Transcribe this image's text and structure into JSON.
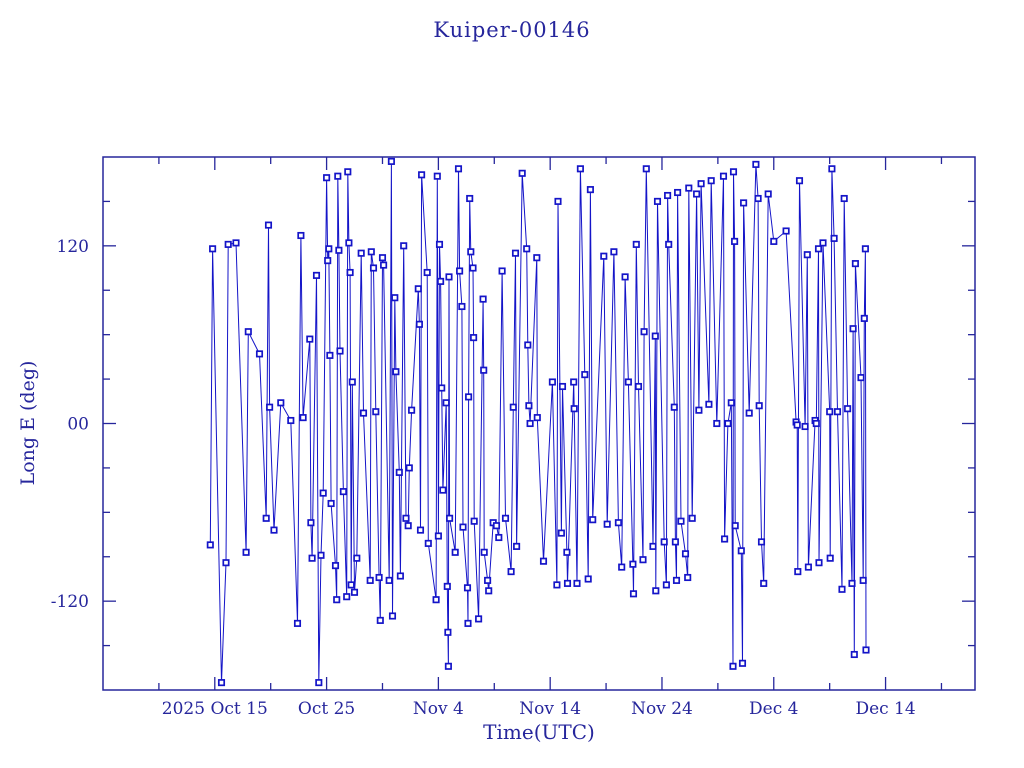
{
  "chart_data": {
    "type": "line",
    "title": "Kuiper-00146",
    "xlabel": "Time(UTC)",
    "ylabel": "Long E (deg)",
    "marker": "open-square",
    "grid": false,
    "legend": "none",
    "colors": {
      "data": "#1414c8",
      "frame_and_text": "#26269c",
      "background": "#ffffff"
    },
    "x_axis": {
      "unit": "days since 2025 Oct 5",
      "range": [
        0,
        78
      ],
      "major_ticks": [
        {
          "day": 10,
          "label": "2025 Oct 15"
        },
        {
          "day": 20,
          "label": "Oct 25"
        },
        {
          "day": 30,
          "label": "Nov 4"
        },
        {
          "day": 40,
          "label": "Nov 14"
        },
        {
          "day": 50,
          "label": "Nov 24"
        },
        {
          "day": 60,
          "label": "Dec 4"
        },
        {
          "day": 70,
          "label": "Dec 14"
        }
      ],
      "minor_tick_days": [
        5,
        15,
        25,
        35,
        45,
        55,
        65,
        75
      ]
    },
    "y_axis": {
      "range": [
        -180,
        180
      ],
      "major_ticks": [
        {
          "value": 120,
          "label": "120"
        },
        {
          "value": 0,
          "label": "00"
        },
        {
          "value": -120,
          "label": "-120"
        }
      ],
      "minor_tick_values": [
        -150,
        -90,
        -60,
        -30,
        30,
        60,
        90,
        150
      ]
    },
    "points": [
      [
        9.6,
        -82
      ],
      [
        9.8,
        118
      ],
      [
        10.6,
        -175
      ],
      [
        11.0,
        -94
      ],
      [
        11.2,
        121
      ],
      [
        11.9,
        122
      ],
      [
        12.8,
        -87
      ],
      [
        13.0,
        62
      ],
      [
        14.0,
        47
      ],
      [
        14.6,
        -64
      ],
      [
        14.8,
        134
      ],
      [
        14.9,
        11
      ],
      [
        15.3,
        -72
      ],
      [
        15.9,
        14
      ],
      [
        16.8,
        2
      ],
      [
        17.4,
        -135
      ],
      [
        17.7,
        127
      ],
      [
        17.9,
        4
      ],
      [
        18.5,
        57
      ],
      [
        18.6,
        -67
      ],
      [
        18.7,
        -91
      ],
      [
        19.1,
        100
      ],
      [
        19.3,
        -175
      ],
      [
        19.5,
        -89
      ],
      [
        19.7,
        -47
      ],
      [
        20.0,
        166
      ],
      [
        20.1,
        110
      ],
      [
        20.2,
        118
      ],
      [
        20.3,
        46
      ],
      [
        20.4,
        -54
      ],
      [
        20.8,
        -96
      ],
      [
        20.9,
        -119
      ],
      [
        21.0,
        167
      ],
      [
        21.1,
        117
      ],
      [
        21.2,
        49
      ],
      [
        21.5,
        -46
      ],
      [
        21.8,
        -117
      ],
      [
        21.9,
        170
      ],
      [
        22.0,
        122
      ],
      [
        22.1,
        102
      ],
      [
        22.2,
        -109
      ],
      [
        22.3,
        28
      ],
      [
        22.5,
        -114
      ],
      [
        22.7,
        -91
      ],
      [
        23.1,
        115
      ],
      [
        23.3,
        7
      ],
      [
        23.9,
        -106
      ],
      [
        24.0,
        116
      ],
      [
        24.2,
        105
      ],
      [
        24.4,
        8
      ],
      [
        24.7,
        -104
      ],
      [
        24.8,
        -133
      ],
      [
        25.0,
        112
      ],
      [
        25.1,
        107
      ],
      [
        25.6,
        -106
      ],
      [
        25.8,
        177
      ],
      [
        25.9,
        -130
      ],
      [
        26.1,
        85
      ],
      [
        26.2,
        35
      ],
      [
        26.5,
        -33
      ],
      [
        26.6,
        -103
      ],
      [
        26.9,
        120
      ],
      [
        27.1,
        -64
      ],
      [
        27.3,
        -69
      ],
      [
        27.4,
        -30
      ],
      [
        27.6,
        9
      ],
      [
        28.2,
        91
      ],
      [
        28.3,
        67
      ],
      [
        28.4,
        -72
      ],
      [
        28.5,
        168
      ],
      [
        29.0,
        102
      ],
      [
        29.1,
        -81
      ],
      [
        29.8,
        -119
      ],
      [
        29.9,
        167
      ],
      [
        30.0,
        -76
      ],
      [
        30.1,
        121
      ],
      [
        30.2,
        96
      ],
      [
        30.3,
        24
      ],
      [
        30.4,
        -45
      ],
      [
        30.7,
        14
      ],
      [
        30.8,
        -110
      ],
      [
        30.85,
        -141
      ],
      [
        30.9,
        -164
      ],
      [
        30.95,
        99
      ],
      [
        31.0,
        -64
      ],
      [
        31.5,
        -87
      ],
      [
        31.8,
        172
      ],
      [
        31.9,
        103
      ],
      [
        32.1,
        79
      ],
      [
        32.2,
        -70
      ],
      [
        32.6,
        -111
      ],
      [
        32.65,
        -135
      ],
      [
        32.7,
        18
      ],
      [
        32.8,
        152
      ],
      [
        32.9,
        116
      ],
      [
        33.1,
        105
      ],
      [
        33.15,
        58
      ],
      [
        33.2,
        -66
      ],
      [
        33.6,
        -132
      ],
      [
        34.0,
        84
      ],
      [
        34.05,
        36
      ],
      [
        34.1,
        -87
      ],
      [
        34.4,
        -106
      ],
      [
        34.5,
        -113
      ],
      [
        34.9,
        -67
      ],
      [
        35.2,
        -69
      ],
      [
        35.4,
        -77
      ],
      [
        35.7,
        103
      ],
      [
        36.0,
        -64
      ],
      [
        36.5,
        -100
      ],
      [
        36.7,
        11
      ],
      [
        36.9,
        115
      ],
      [
        37.0,
        -83
      ],
      [
        37.5,
        169
      ],
      [
        37.9,
        118
      ],
      [
        38.0,
        53
      ],
      [
        38.1,
        12
      ],
      [
        38.2,
        0
      ],
      [
        38.8,
        112
      ],
      [
        38.85,
        4
      ],
      [
        39.4,
        -93
      ],
      [
        40.2,
        28
      ],
      [
        40.6,
        -109
      ],
      [
        40.7,
        150
      ],
      [
        41.0,
        -74
      ],
      [
        41.1,
        25
      ],
      [
        41.5,
        -87
      ],
      [
        41.55,
        -108
      ],
      [
        42.1,
        28
      ],
      [
        42.15,
        10
      ],
      [
        42.4,
        -108
      ],
      [
        42.7,
        172
      ],
      [
        43.1,
        33
      ],
      [
        43.4,
        -105
      ],
      [
        43.6,
        158
      ],
      [
        43.8,
        -65
      ],
      [
        44.8,
        113
      ],
      [
        45.1,
        -68
      ],
      [
        45.7,
        116
      ],
      [
        46.1,
        -67
      ],
      [
        46.4,
        -97
      ],
      [
        46.7,
        99
      ],
      [
        47.0,
        28
      ],
      [
        47.4,
        -95
      ],
      [
        47.45,
        -115
      ],
      [
        47.7,
        121
      ],
      [
        47.9,
        25
      ],
      [
        48.3,
        -92
      ],
      [
        48.4,
        62
      ],
      [
        48.6,
        172
      ],
      [
        49.2,
        -83
      ],
      [
        49.4,
        59
      ],
      [
        49.45,
        -113
      ],
      [
        49.6,
        150
      ],
      [
        50.2,
        -80
      ],
      [
        50.4,
        -109
      ],
      [
        50.5,
        154
      ],
      [
        50.6,
        121
      ],
      [
        51.1,
        11
      ],
      [
        51.2,
        -80
      ],
      [
        51.3,
        -106
      ],
      [
        51.4,
        156
      ],
      [
        51.7,
        -66
      ],
      [
        52.1,
        -88
      ],
      [
        52.3,
        -104
      ],
      [
        52.4,
        159
      ],
      [
        52.7,
        -64
      ],
      [
        53.1,
        155
      ],
      [
        53.3,
        9
      ],
      [
        53.5,
        162
      ],
      [
        54.2,
        13
      ],
      [
        54.4,
        164
      ],
      [
        54.9,
        0
      ],
      [
        55.5,
        167
      ],
      [
        55.6,
        -78
      ],
      [
        55.9,
        0
      ],
      [
        56.2,
        14
      ],
      [
        56.35,
        -164
      ],
      [
        56.4,
        170
      ],
      [
        56.5,
        123
      ],
      [
        56.55,
        -69
      ],
      [
        57.1,
        -86
      ],
      [
        57.2,
        -162
      ],
      [
        57.3,
        149
      ],
      [
        57.8,
        7
      ],
      [
        58.4,
        175
      ],
      [
        58.6,
        152
      ],
      [
        58.7,
        12
      ],
      [
        58.9,
        -80
      ],
      [
        59.1,
        -108
      ],
      [
        59.5,
        155
      ],
      [
        60.0,
        123
      ],
      [
        61.1,
        130
      ],
      [
        62.0,
        1
      ],
      [
        62.1,
        -1
      ],
      [
        62.15,
        -100
      ],
      [
        62.3,
        164
      ],
      [
        62.8,
        -2
      ],
      [
        63.0,
        114
      ],
      [
        63.1,
        -97
      ],
      [
        63.7,
        2
      ],
      [
        63.8,
        0
      ],
      [
        64.0,
        118
      ],
      [
        64.05,
        -94
      ],
      [
        64.4,
        122
      ],
      [
        65.0,
        8
      ],
      [
        65.05,
        -91
      ],
      [
        65.2,
        172
      ],
      [
        65.4,
        125
      ],
      [
        65.7,
        8
      ],
      [
        66.1,
        -112
      ],
      [
        66.3,
        152
      ],
      [
        66.6,
        10
      ],
      [
        67.0,
        -108
      ],
      [
        67.1,
        64
      ],
      [
        67.2,
        -156
      ],
      [
        67.3,
        108
      ],
      [
        67.8,
        31
      ],
      [
        68.0,
        -106
      ],
      [
        68.1,
        71
      ],
      [
        68.2,
        118
      ],
      [
        68.25,
        -153
      ]
    ]
  }
}
